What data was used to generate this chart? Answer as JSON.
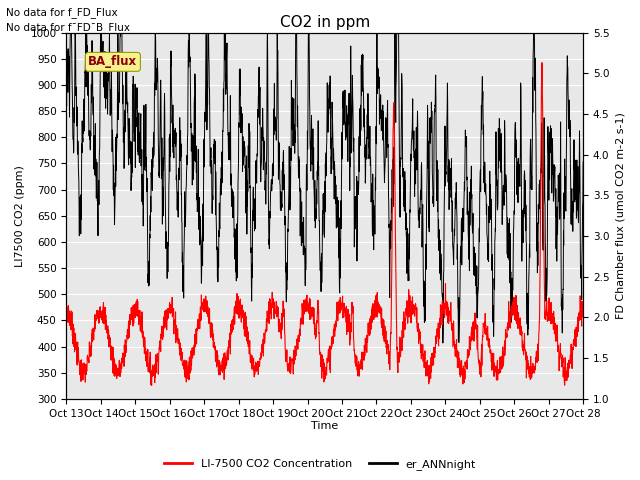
{
  "title": "CO2 in ppm",
  "ylabel_left": "LI7500 CO2 (ppm)",
  "ylabel_right": "FD Chamber flux (umol CO2 m-2 s-1)",
  "xlabel": "Time",
  "ylim_left": [
    300,
    1000
  ],
  "ylim_right": [
    1.0,
    5.5
  ],
  "yticks_left": [
    300,
    350,
    400,
    450,
    500,
    550,
    600,
    650,
    700,
    750,
    800,
    850,
    900,
    950,
    1000
  ],
  "yticks_right": [
    1.0,
    1.5,
    2.0,
    2.5,
    3.0,
    3.5,
    4.0,
    4.5,
    5.0,
    5.5
  ],
  "xtick_labels": [
    "Oct 13",
    "Oct 14",
    "Oct 15",
    "Oct 16",
    "Oct 17",
    "Oct 18",
    "Oct 19",
    "Oct 20",
    "Oct 21",
    "Oct 22",
    "Oct 23",
    "Oct 24",
    "Oct 25",
    "Oct 26",
    "Oct 27",
    "Oct 28"
  ],
  "annotation_line1": "No data for f_FD_Flux",
  "annotation_line2": "No data for f¯FD¯B_Flux",
  "ba_flux_label": "BA_flux",
  "legend_label_red": "LI-7500 CO2 Concentration",
  "legend_label_black": "er_ANNnight",
  "line_color_red": "red",
  "line_color_black": "black",
  "background_color": "#e8e8e8",
  "title_fontsize": 11,
  "axis_label_fontsize": 8,
  "tick_fontsize": 7.5,
  "legend_fontsize": 8
}
